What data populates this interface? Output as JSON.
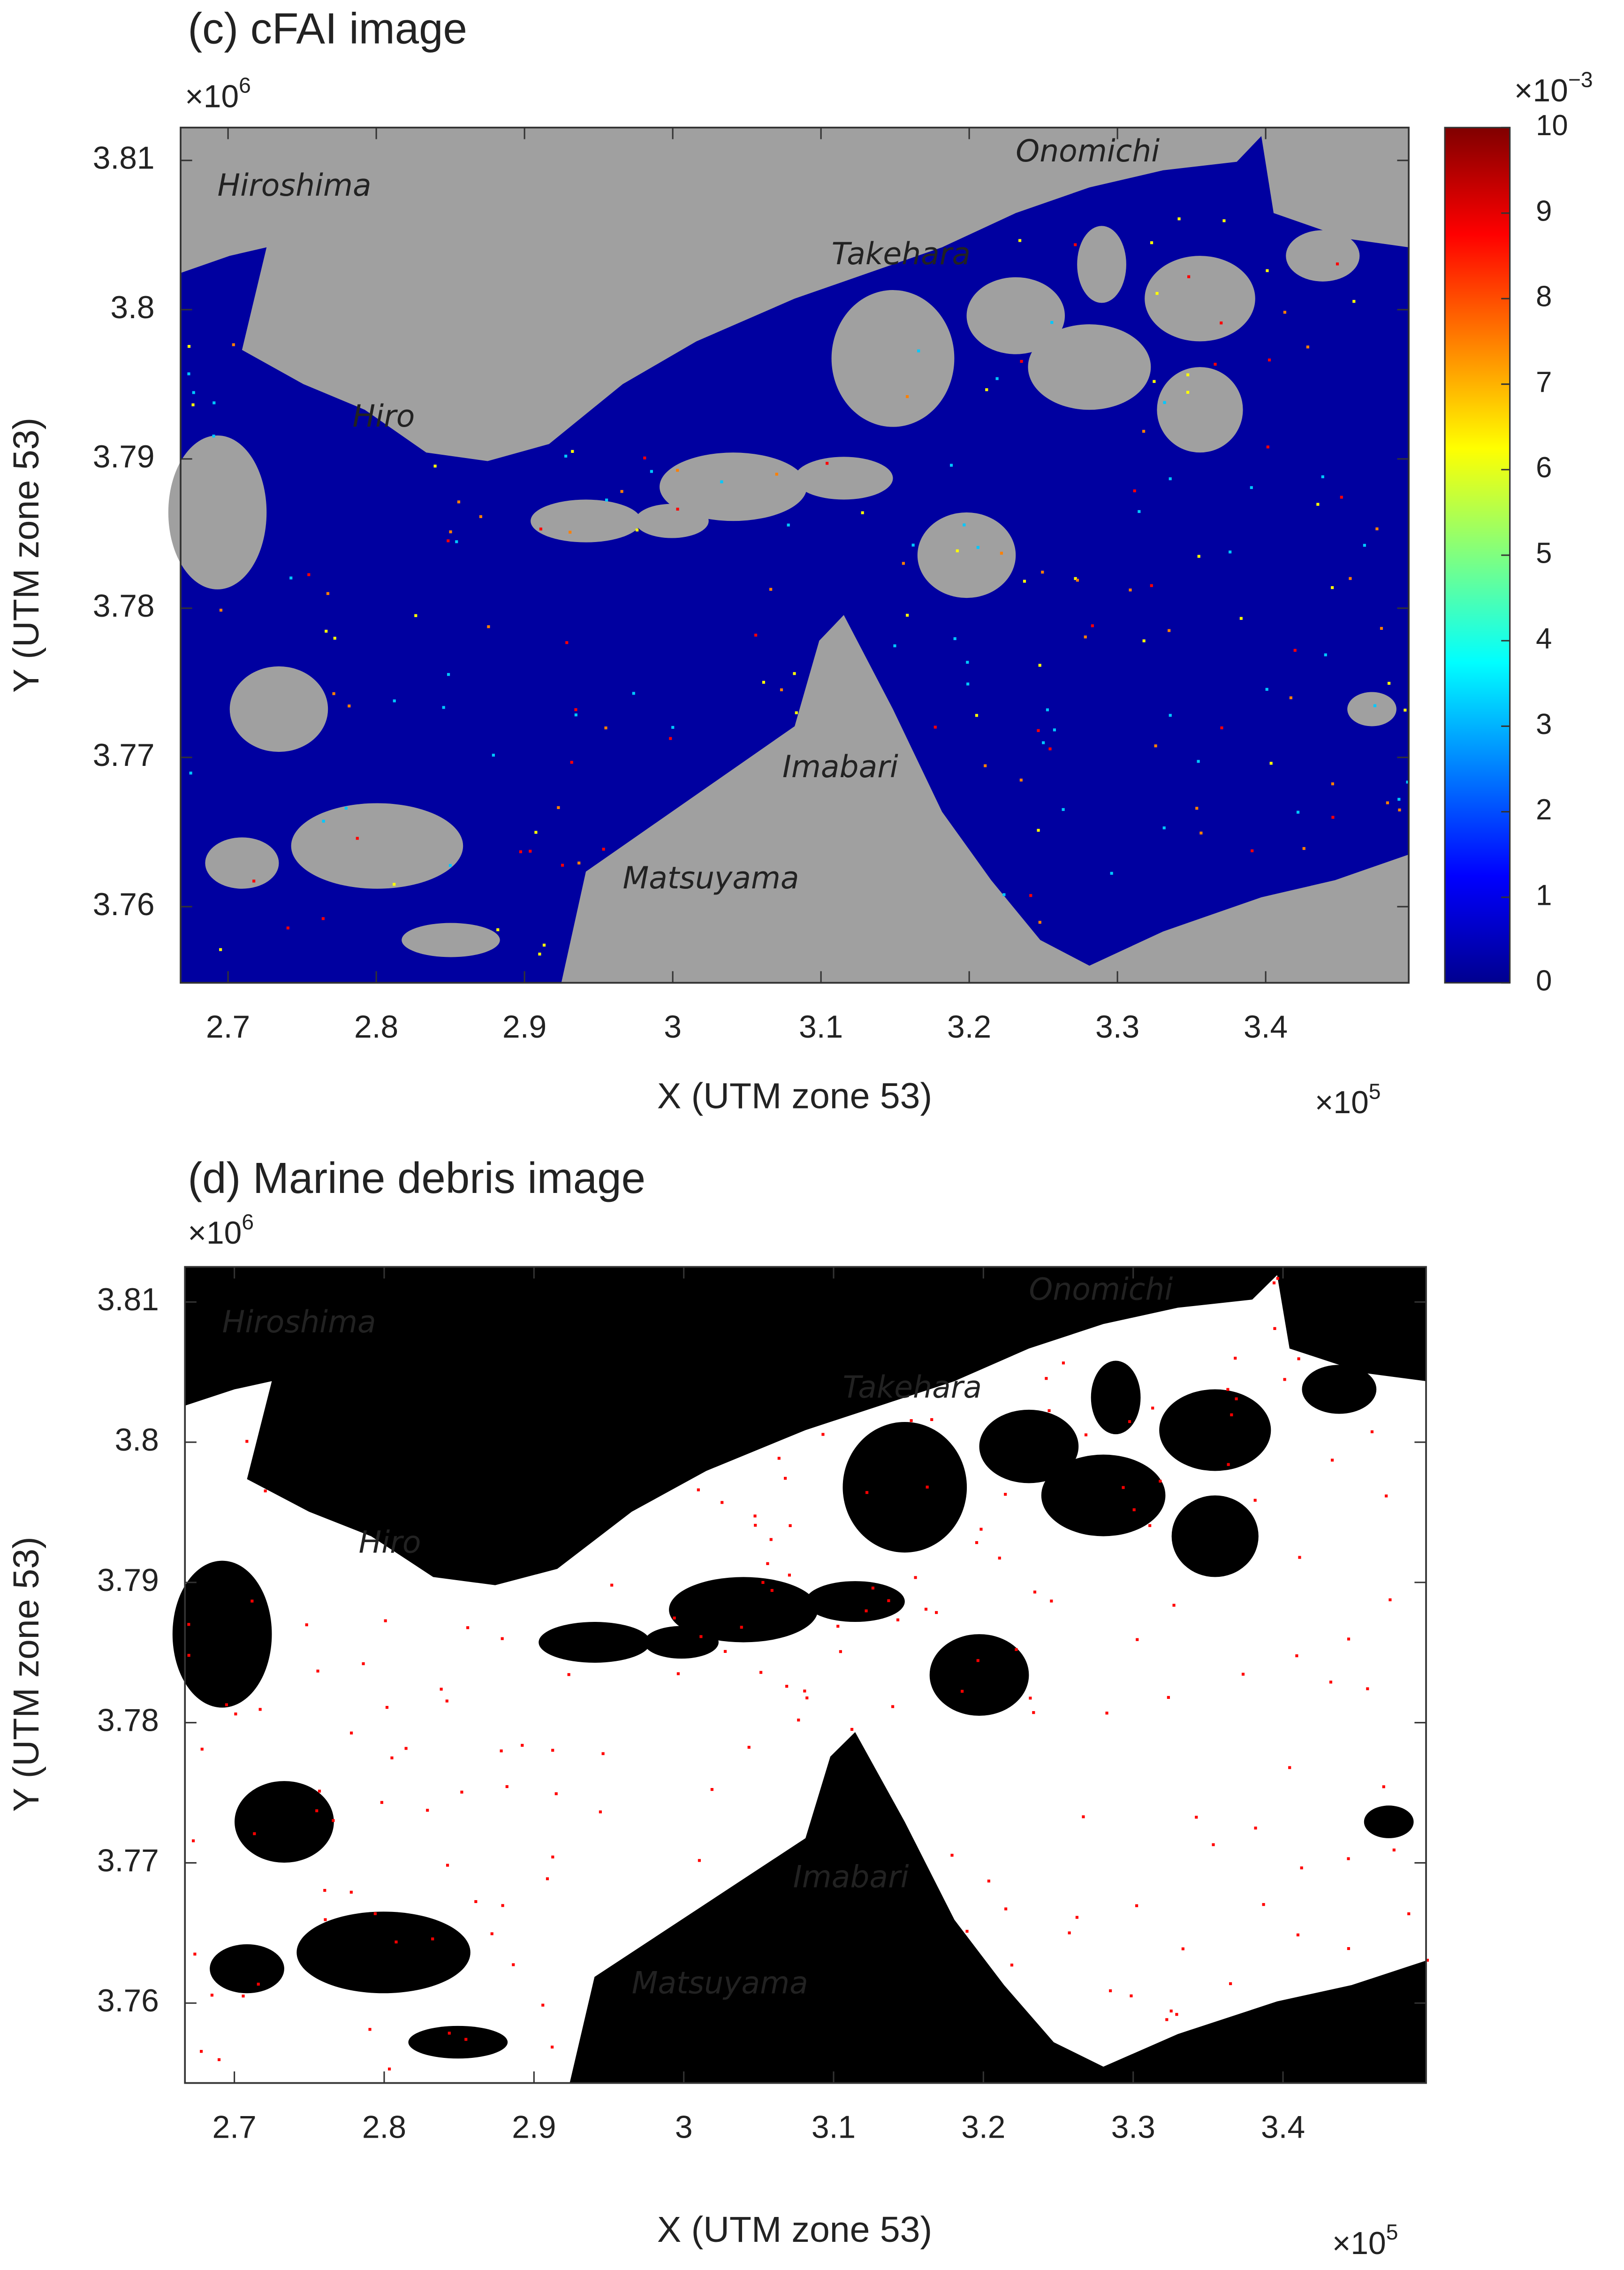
{
  "chart_data": [
    {
      "type": "map",
      "title": "(c) cFAI image",
      "xlabel": "X (UTM zone 53)",
      "ylabel": "Y (UTM zone 53)",
      "x_multiplier": "×10",
      "x_exponent": "5",
      "y_multiplier": "×10",
      "y_exponent": "6",
      "xlim": [
        2.668,
        3.4965
      ],
      "ylim": [
        3.7549,
        3.8122
      ],
      "xticks": [
        2.7,
        2.8,
        2.9,
        3,
        3.1,
        3.2,
        3.3,
        3.4
      ],
      "yticks": [
        3.76,
        3.77,
        3.78,
        3.79,
        3.8,
        3.81
      ],
      "place_names": [
        "Hiroshima",
        "Onomichi",
        "Takehara",
        "Hiro",
        "Imabari",
        "Matsuyama"
      ],
      "land_color": "#a0a0a0",
      "water_color": "#0000a0",
      "label_color": "#000000",
      "debris_colors": [
        "#ff0000",
        "#00c8ff",
        "#ffff00",
        "#ff8000"
      ],
      "colorbar": {
        "colormap": "jet",
        "lim": [
          0,
          10
        ],
        "ticks": [
          0,
          1,
          2,
          3,
          4,
          5,
          6,
          7,
          8,
          9,
          10
        ],
        "multiplier": "×10",
        "exponent": "−3"
      }
    },
    {
      "type": "map",
      "title": "(d) Marine debris image",
      "xlabel": "X (UTM zone 53)",
      "ylabel": "Y (UTM zone 53)",
      "x_multiplier": "×10",
      "x_exponent": "5",
      "y_multiplier": "×10",
      "y_exponent": "6",
      "xlim": [
        2.667,
        3.4955
      ],
      "ylim": [
        3.7543,
        3.8125
      ],
      "xticks": [
        2.7,
        2.8,
        2.9,
        3,
        3.1,
        3.2,
        3.3,
        3.4
      ],
      "yticks": [
        3.76,
        3.77,
        3.78,
        3.79,
        3.8,
        3.81
      ],
      "place_names": [
        "Hiroshima",
        "Onomichi",
        "Takehara",
        "Hiro",
        "Imabari",
        "Matsuyama"
      ],
      "land_color": "#000000",
      "water_color": "#ffffff",
      "label_color": "#ffffff",
      "debris_colors": [
        "#ff0000"
      ]
    }
  ]
}
